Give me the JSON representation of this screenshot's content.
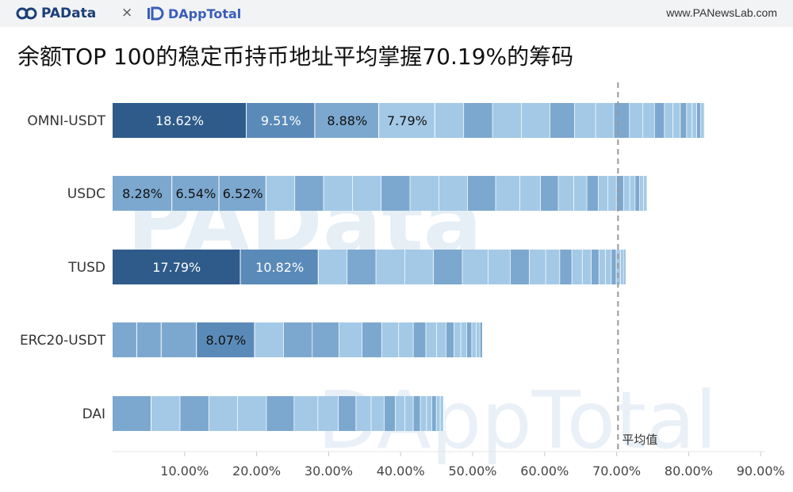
{
  "header": {
    "brand_left": "PAData",
    "separator": "×",
    "brand_right": "DAppTotal",
    "site": "www.PANewsLab.com"
  },
  "title": "余额TOP 100的稳定币持币地址平均掌握70.19%的筹码",
  "watermarks": [
    "PAData",
    "DAppTotal"
  ],
  "colors": {
    "darkest": "#2e5b8a",
    "dark": "#5a8ab8",
    "mid": "#7ca8cf",
    "light": "#a3c9e6",
    "avg_line": "#999999"
  },
  "chart_data": {
    "type": "bar",
    "orientation": "horizontal",
    "stacked": true,
    "categories": [
      "OMNI-USDT",
      "USDC",
      "TUSD",
      "ERC20-USDT",
      "DAI"
    ],
    "totals": [
      82.3,
      74.3,
      71.3,
      51.4,
      46.0
    ],
    "segments": [
      {
        "category": "OMNI-USDT",
        "top_shares": [
          18.62,
          9.51,
          8.88,
          7.79
        ],
        "labels": [
          "18.62%",
          "9.51%",
          "8.88%",
          "7.79%"
        ]
      },
      {
        "category": "USDC",
        "top_shares": [
          8.28,
          6.54,
          6.52
        ],
        "labels": [
          "8.28%",
          "6.54%",
          "6.52%"
        ]
      },
      {
        "category": "TUSD",
        "top_shares": [
          17.79,
          10.82
        ],
        "labels": [
          "17.79%",
          "10.82%"
        ]
      },
      {
        "category": "ERC20-USDT",
        "top_shares": [
          3.4,
          3.4,
          4.9,
          8.07
        ],
        "labels": [
          "",
          "",
          "",
          "8.07%"
        ]
      },
      {
        "category": "DAI",
        "top_shares": [
          5.4
        ],
        "labels": [
          ""
        ]
      }
    ],
    "average": 70.19,
    "average_label": "平均值",
    "x_ticks": [
      "10.00%",
      "20.00%",
      "30.00%",
      "40.00%",
      "50.00%",
      "60.00%",
      "70.00%",
      "80.00%",
      "90.00%"
    ],
    "x_tick_values": [
      10,
      20,
      30,
      40,
      50,
      60,
      70,
      80,
      90
    ],
    "xlim": [
      0,
      90
    ],
    "grid": false
  }
}
